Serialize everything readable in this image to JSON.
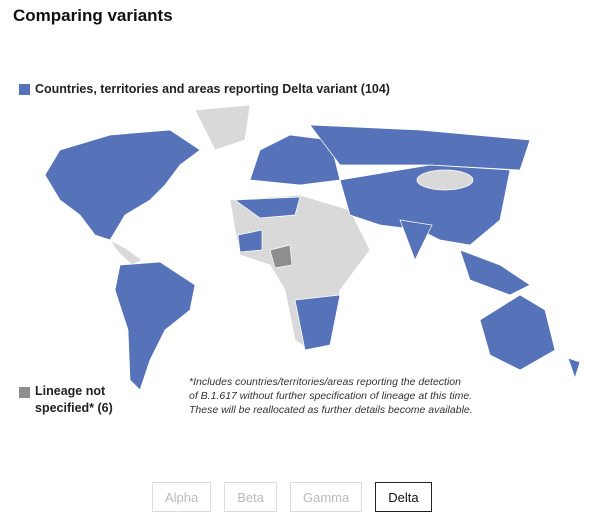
{
  "title": "Comparing variants",
  "legend": [
    {
      "label": "Countries, territories and areas reporting Delta variant (104)",
      "color": "#5672b9"
    },
    {
      "label": "Lineage not specified* (6)",
      "color": "#8e8e8e"
    }
  ],
  "note_lines": [
    "*Includes countries/territories/areas reporting the detection",
    "of B.1.617 without further specification of lineage at this time.",
    "These will be reallocated as further details become available."
  ],
  "buttons": [
    {
      "label": "Alpha",
      "active": false
    },
    {
      "label": "Beta",
      "active": false
    },
    {
      "label": "Gamma",
      "active": false
    },
    {
      "label": "Delta",
      "active": true
    }
  ]
}
